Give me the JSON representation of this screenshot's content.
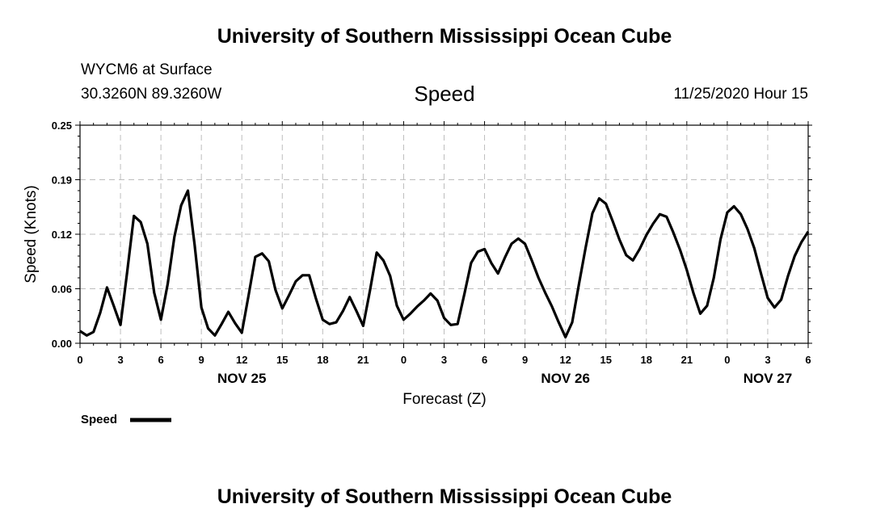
{
  "header": {
    "title": "University of Southern Mississippi Ocean Cube",
    "station": "WYCM6 at Surface",
    "coords": "30.3260N 89.3260W",
    "timestamp": "11/25/2020 Hour 15"
  },
  "footer": {
    "title": "University of Southern Mississippi Ocean Cube"
  },
  "legend": {
    "label": "Speed"
  },
  "colors": {
    "line": "#000000",
    "grid": "#bdbdbd",
    "background": "#ffffff"
  },
  "chart_data": {
    "type": "line",
    "title": "Speed",
    "xlabel": "Forecast (Z)",
    "ylabel": "Speed (Knots)",
    "ylim": [
      0.0,
      0.25
    ],
    "xlim": [
      0,
      54
    ],
    "grid": true,
    "legend_placement": "bottom-left",
    "y_ticks": [
      "0.00",
      "0.06",
      "0.12",
      "0.19",
      "0.25"
    ],
    "x_tick_labels": [
      "0",
      "3",
      "6",
      "9",
      "12",
      "15",
      "18",
      "21",
      "0",
      "3",
      "6",
      "9",
      "12",
      "15",
      "18",
      "21",
      "0",
      "3",
      "6"
    ],
    "day_labels": [
      {
        "label": "NOV 25",
        "hour": 12
      },
      {
        "label": "NOV 26",
        "hour": 36
      },
      {
        "label": "NOV 27",
        "hour": 51
      }
    ],
    "series": [
      {
        "name": "Speed",
        "hours": [
          0,
          0.5,
          1,
          1.5,
          2,
          2.5,
          3,
          3.5,
          4,
          4.5,
          5,
          5.5,
          6,
          6.5,
          7,
          7.5,
          8,
          8.5,
          9,
          9.5,
          10,
          10.5,
          11,
          11.5,
          12,
          12.5,
          13,
          13.5,
          14,
          14.5,
          15,
          15.5,
          16,
          16.5,
          17,
          17.5,
          18,
          18.5,
          19,
          19.5,
          20,
          20.5,
          21,
          21.5,
          22,
          22.5,
          23,
          23.5,
          24,
          24.5,
          25,
          25.5,
          26,
          26.5,
          27,
          27.5,
          28,
          28.5,
          29,
          29.5,
          30,
          30.5,
          31,
          31.5,
          32,
          32.5,
          33,
          33.5,
          34,
          34.5,
          35,
          35.5,
          36,
          36.5,
          37,
          37.5,
          38,
          38.5,
          39,
          39.5,
          40,
          40.5,
          41,
          41.5,
          42,
          42.5,
          43,
          43.5,
          44,
          44.5,
          45,
          45.5,
          46,
          46.5,
          47,
          47.5,
          48,
          48.5,
          49,
          49.5,
          50,
          50.5,
          51,
          51.5,
          52,
          52.5,
          53,
          53.5,
          54
        ],
        "values": [
          0.014,
          0.009,
          0.013,
          0.035,
          0.064,
          0.043,
          0.021,
          0.082,
          0.146,
          0.139,
          0.114,
          0.058,
          0.027,
          0.068,
          0.122,
          0.158,
          0.175,
          0.113,
          0.041,
          0.017,
          0.009,
          0.022,
          0.036,
          0.023,
          0.012,
          0.055,
          0.099,
          0.103,
          0.094,
          0.061,
          0.04,
          0.055,
          0.071,
          0.078,
          0.078,
          0.051,
          0.027,
          0.022,
          0.024,
          0.037,
          0.053,
          0.037,
          0.02,
          0.06,
          0.104,
          0.095,
          0.077,
          0.043,
          0.027,
          0.034,
          0.042,
          0.049,
          0.057,
          0.049,
          0.029,
          0.021,
          0.022,
          0.056,
          0.092,
          0.105,
          0.108,
          0.092,
          0.08,
          0.098,
          0.114,
          0.12,
          0.114,
          0.095,
          0.075,
          0.058,
          0.042,
          0.024,
          0.007,
          0.024,
          0.068,
          0.11,
          0.149,
          0.166,
          0.16,
          0.14,
          0.119,
          0.101,
          0.095,
          0.108,
          0.124,
          0.137,
          0.148,
          0.145,
          0.127,
          0.107,
          0.084,
          0.057,
          0.034,
          0.043,
          0.075,
          0.119,
          0.15,
          0.157,
          0.148,
          0.131,
          0.109,
          0.08,
          0.052,
          0.041,
          0.05,
          0.077,
          0.1,
          0.116,
          0.128
        ]
      }
    ]
  }
}
